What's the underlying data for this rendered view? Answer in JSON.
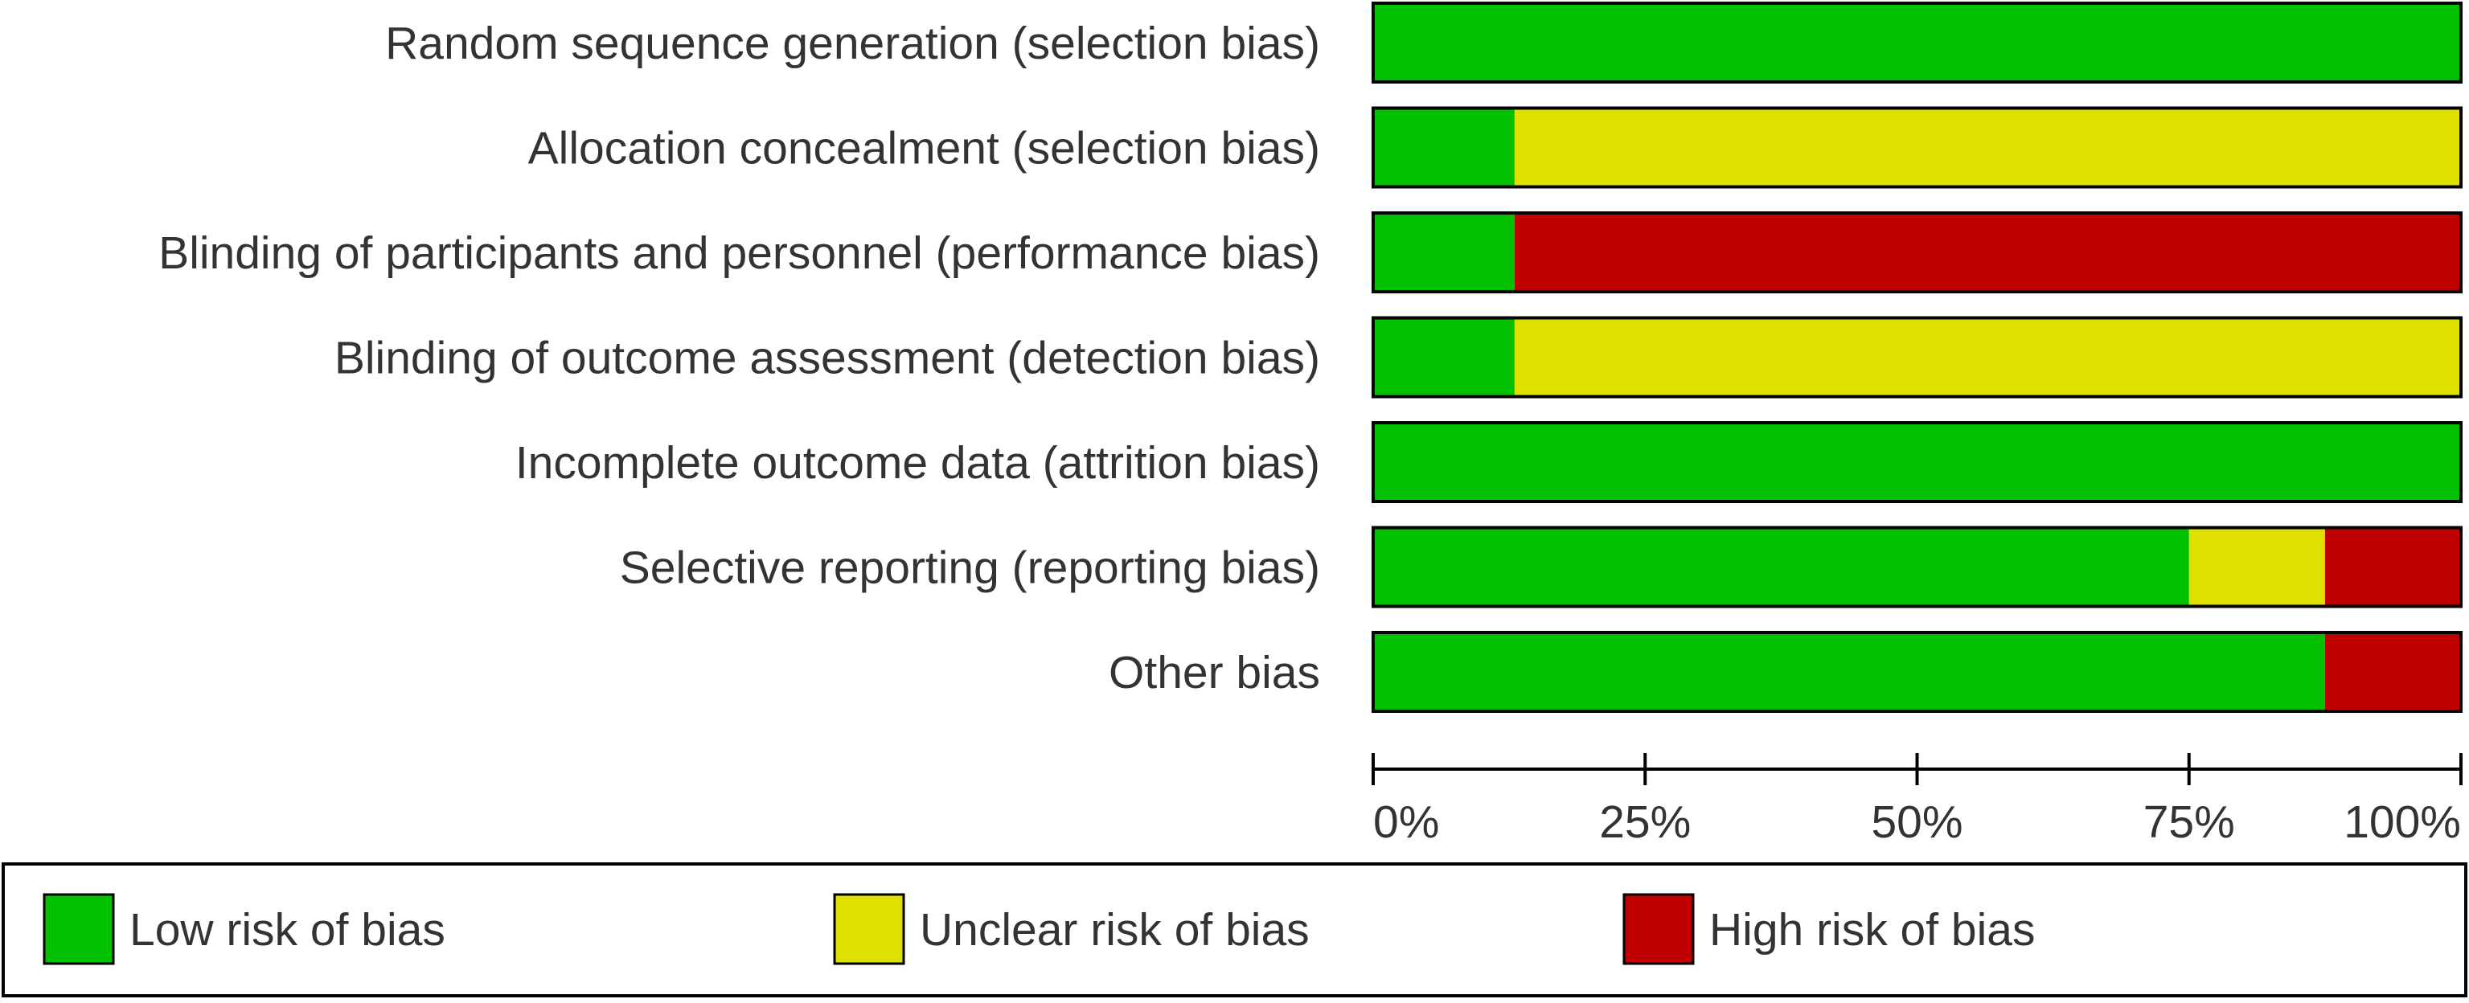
{
  "chart_data": {
    "type": "bar",
    "orientation": "horizontal",
    "stacked": true,
    "title": "",
    "xlabel": "",
    "ylabel": "",
    "xlim": [
      0,
      100
    ],
    "x_unit": "%",
    "x_ticks": [
      "0%",
      "25%",
      "50%",
      "75%",
      "100%"
    ],
    "x_tick_values": [
      0,
      25,
      50,
      75,
      100
    ],
    "grid": false,
    "legend_position": "bottom",
    "categories": [
      "Random sequence generation (selection bias)",
      "Allocation concealment (selection bias)",
      "Blinding of participants and personnel (performance bias)",
      "Blinding of outcome assessment (detection bias)",
      "Incomplete outcome data (attrition bias)",
      "Selective reporting (reporting bias)",
      "Other bias"
    ],
    "series": [
      {
        "name": "Low risk of bias",
        "color": "#00c000",
        "values": [
          100,
          13,
          13,
          13,
          100,
          75,
          87.5
        ]
      },
      {
        "name": "Unclear risk of bias",
        "color": "#e0e000",
        "values": [
          0,
          87,
          0,
          87,
          0,
          12.5,
          0
        ]
      },
      {
        "name": "High risk of bias",
        "color": "#c00000",
        "values": [
          0,
          0,
          87,
          0,
          0,
          12.5,
          12.5
        ]
      }
    ]
  },
  "colors": {
    "outline": "#000000",
    "text": "#333333",
    "background": "#ffffff"
  }
}
